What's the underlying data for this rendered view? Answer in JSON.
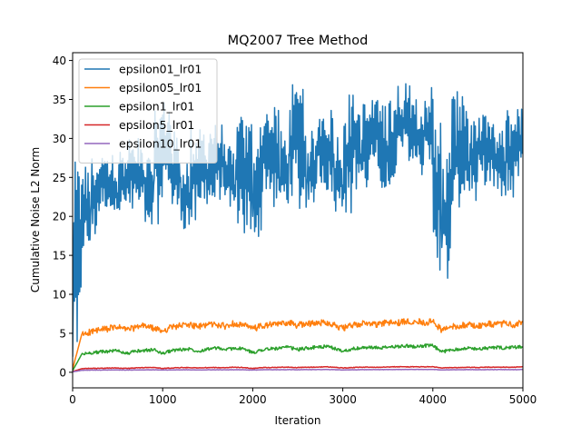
{
  "chart_data": {
    "type": "line",
    "title": "MQ2007 Tree Method",
    "xlabel": "Iteration",
    "ylabel": "Cumulative Noise L2 Norm",
    "xlim": [
      0,
      5000
    ],
    "ylim": [
      -2,
      41
    ],
    "xticks": [
      0,
      1000,
      2000,
      3000,
      4000,
      5000
    ],
    "yticks": [
      0,
      5,
      10,
      15,
      20,
      25,
      30,
      35,
      40
    ],
    "grid": false,
    "legend_position": "top-left",
    "x_sample_step": 100,
    "series": [
      {
        "name": "epsilon01_lr01",
        "color": "#1f77b4",
        "values": [
          2,
          24,
          20,
          26,
          25,
          23,
          26,
          27,
          25,
          24,
          33,
          28,
          25,
          23,
          29,
          26,
          29,
          27,
          24,
          30,
          20,
          29,
          31,
          25,
          28,
          35,
          24,
          29,
          31,
          28,
          24,
          34,
          28,
          33,
          32,
          29,
          33,
          37,
          33,
          31,
          35,
          16,
          26,
          34,
          27,
          30,
          30,
          28,
          27,
          31,
          31,
          26,
          28,
          33,
          26,
          32,
          27,
          35,
          31,
          31,
          30,
          34,
          30,
          29,
          24,
          27,
          28,
          30,
          28,
          30,
          32,
          33,
          31,
          33,
          29,
          31,
          35,
          31,
          32,
          34,
          35,
          36,
          14,
          28,
          28,
          24,
          30,
          28,
          30,
          31,
          25,
          29,
          29,
          24,
          33,
          29,
          33,
          32,
          30,
          33,
          34
        ],
        "min_values": [
          2,
          15,
          17,
          21,
          21,
          20,
          21,
          23,
          20,
          19,
          25,
          23,
          20,
          18,
          23,
          21,
          23,
          22,
          19,
          23,
          17,
          23,
          25,
          21,
          22,
          27,
          20,
          24,
          25,
          23,
          20,
          28,
          23,
          27,
          26,
          23,
          27,
          29,
          27,
          25,
          28,
          11,
          20,
          28,
          22,
          24,
          24,
          23,
          22,
          25,
          25,
          21,
          22,
          26,
          21,
          26,
          22,
          28,
          25,
          25,
          24,
          27,
          24,
          24,
          19,
          22,
          23,
          25,
          23,
          24,
          26,
          26,
          24,
          27,
          24,
          25,
          28,
          25,
          26,
          28,
          28,
          29,
          14,
          19,
          22,
          20,
          24,
          22,
          24,
          25,
          20,
          23,
          23,
          19,
          27,
          24,
          27,
          26,
          24,
          27,
          28
        ],
        "max_values": [
          2,
          27,
          23,
          28,
          28,
          27,
          29,
          30,
          28,
          28,
          35,
          31,
          28,
          26,
          32,
          29,
          32,
          30,
          27,
          33,
          24,
          32,
          34,
          28,
          31,
          37,
          27,
          31,
          34,
          31,
          27,
          36,
          31,
          35,
          35,
          32,
          35,
          37,
          36,
          34,
          37,
          19,
          29,
          36,
          30,
          33,
          33,
          31,
          30,
          34,
          33,
          29,
          31,
          35,
          29,
          35,
          30,
          37,
          34,
          34,
          33,
          36,
          33,
          32,
          27,
          30,
          31,
          33,
          31,
          33,
          35,
          35,
          34,
          35,
          32,
          34,
          37,
          34,
          35,
          36,
          37,
          38.7,
          17,
          31,
          31,
          27,
          33,
          31,
          33,
          34,
          28,
          32,
          32,
          27,
          35,
          32,
          35,
          34,
          33,
          35,
          34.8
        ]
      },
      {
        "name": "epsilon05_lr01",
        "color": "#ff7f0e",
        "values": [
          0.4,
          4.8,
          5.2,
          5.4,
          5.6,
          5.8,
          5.5,
          5.7,
          6.0,
          5.6,
          5.3,
          5.8,
          6.0,
          6.1,
          5.8,
          6.2,
          6.1,
          5.9,
          6.3,
          6.0,
          5.6,
          5.9,
          6.1,
          6.2,
          6.4,
          6.0,
          6.3,
          6.2,
          6.5,
          6.1,
          5.6,
          6.0,
          6.2,
          6.3,
          6.1,
          6.4,
          6.3,
          6.5,
          6.6,
          6.4,
          6.5,
          5.4,
          5.8,
          6.0,
          6.1,
          5.9,
          6.2,
          6.1,
          6.3,
          6.0,
          6.4,
          5.7,
          6.0,
          6.2,
          6.4,
          6.1,
          6.3,
          6.5,
          6.2,
          6.4,
          6.6,
          6.3,
          6.5,
          6.4,
          6.6,
          6.2,
          6.5,
          6.7,
          6.4,
          6.6,
          6.8,
          6.5,
          6.7,
          6.6,
          6.9,
          6.7,
          6.8,
          7.0,
          6.8,
          7.1,
          7.0,
          7.2,
          5.2,
          5.7,
          5.9,
          6.0,
          5.8,
          6.1,
          6.0,
          6.2,
          5.9,
          6.1,
          6.3,
          5.9,
          6.1,
          6.2,
          6.0,
          6.3,
          6.2,
          6.4,
          6.3
        ]
      },
      {
        "name": "epsilon1_lr01",
        "color": "#2ca02c",
        "values": [
          0.2,
          2.3,
          2.5,
          2.6,
          2.7,
          2.8,
          2.4,
          2.7,
          2.8,
          2.9,
          2.4,
          2.8,
          2.9,
          3.0,
          2.7,
          3.0,
          3.1,
          2.9,
          3.1,
          3.0,
          2.5,
          2.9,
          3.0,
          3.1,
          3.2,
          2.9,
          3.1,
          3.2,
          3.3,
          3.1,
          2.7,
          3.0,
          3.1,
          3.2,
          3.1,
          3.2,
          3.3,
          3.4,
          3.3,
          3.4,
          3.4,
          2.6,
          2.9,
          3.0,
          3.1,
          3.0,
          3.1,
          3.2,
          3.1,
          3.2,
          3.3,
          2.8,
          3.0,
          3.1,
          3.2,
          3.1,
          3.2,
          3.3,
          3.2,
          3.3,
          3.4,
          3.2,
          3.3,
          3.3,
          3.4,
          3.1,
          3.2,
          3.3,
          3.4,
          3.3,
          3.4,
          3.5,
          3.4,
          3.5,
          3.5,
          3.4,
          3.5,
          3.6,
          3.5,
          3.6,
          3.6,
          3.7,
          2.4,
          2.8,
          2.9,
          3.0,
          2.9,
          3.0,
          3.0,
          3.1,
          2.9,
          3.0,
          3.1,
          2.9,
          3.0,
          3.1,
          3.0,
          3.1,
          3.1,
          3.2,
          3.1
        ]
      },
      {
        "name": "epsilon5_lr01",
        "color": "#d62728",
        "values": [
          0.1,
          0.45,
          0.5,
          0.5,
          0.55,
          0.55,
          0.5,
          0.55,
          0.6,
          0.6,
          0.5,
          0.55,
          0.6,
          0.6,
          0.55,
          0.6,
          0.6,
          0.6,
          0.65,
          0.6,
          0.5,
          0.6,
          0.6,
          0.65,
          0.65,
          0.6,
          0.65,
          0.65,
          0.7,
          0.65,
          0.55,
          0.6,
          0.65,
          0.65,
          0.65,
          0.7,
          0.7,
          0.7,
          0.7,
          0.7,
          0.7,
          0.55,
          0.6,
          0.6,
          0.65,
          0.6,
          0.65,
          0.65,
          0.65,
          0.65,
          0.7,
          0.6,
          0.65,
          0.65,
          0.7,
          0.65,
          0.7,
          0.7,
          0.7,
          0.7,
          0.7,
          0.7,
          0.7,
          0.7,
          0.7,
          0.65,
          0.7,
          0.7,
          0.7,
          0.7,
          0.75,
          0.7,
          0.75,
          0.75,
          0.75,
          0.75,
          0.75,
          0.75,
          0.75,
          0.8,
          0.8,
          0.8,
          0.5,
          0.6,
          0.6,
          0.65,
          0.6,
          0.65,
          0.65,
          0.65,
          0.6,
          0.65,
          0.65,
          0.6,
          0.65,
          0.65,
          0.65,
          0.65,
          0.65,
          0.7,
          0.7
        ]
      },
      {
        "name": "epsilon10_lr01",
        "color": "#9467bd",
        "values": [
          0.05,
          0.25,
          0.28,
          0.28,
          0.3,
          0.3,
          0.28,
          0.3,
          0.3,
          0.32,
          0.28,
          0.3,
          0.32,
          0.32,
          0.3,
          0.32,
          0.33,
          0.32,
          0.33,
          0.32,
          0.28,
          0.32,
          0.33,
          0.33,
          0.34,
          0.32,
          0.34,
          0.34,
          0.35,
          0.34,
          0.3,
          0.32,
          0.34,
          0.34,
          0.34,
          0.35,
          0.35,
          0.36,
          0.36,
          0.36,
          0.36,
          0.3,
          0.32,
          0.33,
          0.34,
          0.33,
          0.34,
          0.34,
          0.34,
          0.34,
          0.35,
          0.32,
          0.34,
          0.34,
          0.35,
          0.34,
          0.35,
          0.36,
          0.35,
          0.36,
          0.36,
          0.36,
          0.36,
          0.36,
          0.37,
          0.35,
          0.36,
          0.37,
          0.37,
          0.37,
          0.38,
          0.37,
          0.38,
          0.38,
          0.38,
          0.38,
          0.38,
          0.39,
          0.39,
          0.4,
          0.4,
          0.4,
          0.28,
          0.32,
          0.33,
          0.34,
          0.33,
          0.34,
          0.34,
          0.35,
          0.33,
          0.34,
          0.35,
          0.33,
          0.34,
          0.35,
          0.34,
          0.35,
          0.35,
          0.36,
          0.36
        ]
      }
    ]
  }
}
